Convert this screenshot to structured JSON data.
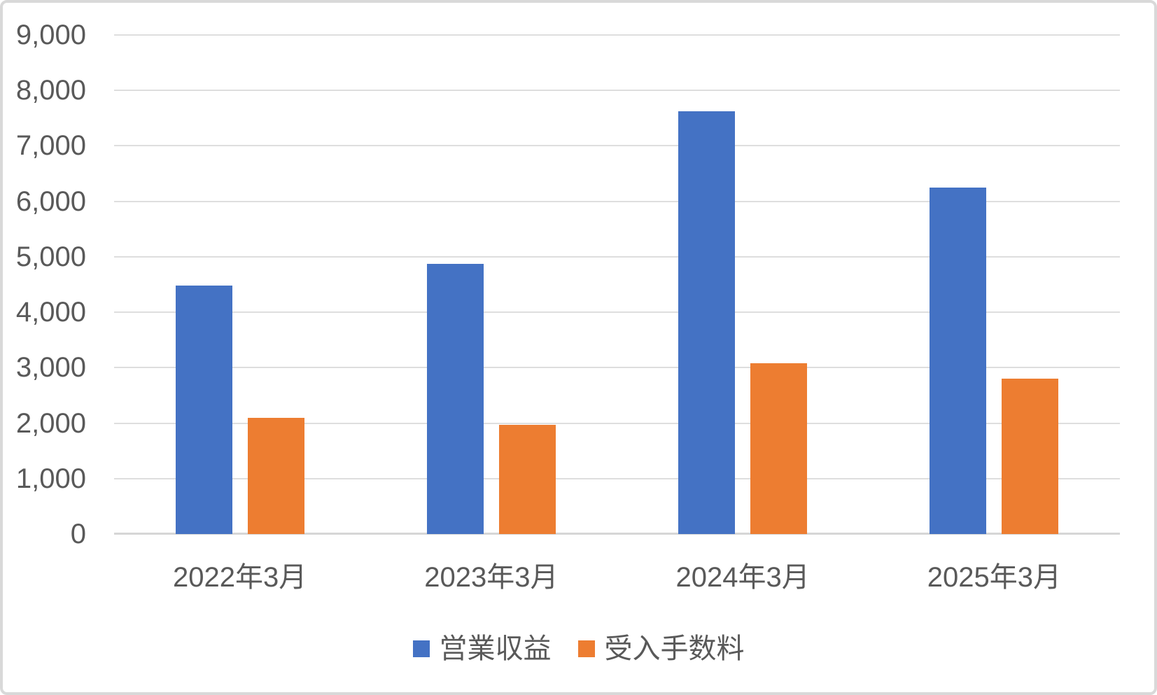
{
  "chart_data": {
    "type": "bar",
    "title": "",
    "xlabel": "",
    "ylabel": "",
    "categories": [
      "2022年3月",
      "2023年3月",
      "2024年3月",
      "2025年3月"
    ],
    "series": [
      {
        "name": "営業収益",
        "color": "#4472C4",
        "values": [
          4480,
          4870,
          7630,
          6250
        ]
      },
      {
        "name": "受入手数料",
        "color": "#ED7D31",
        "values": [
          2100,
          1970,
          3080,
          2800
        ]
      }
    ],
    "ylim": [
      0,
      9000
    ],
    "ytick_step": 1000,
    "ytick_labels": [
      "0",
      "1,000",
      "2,000",
      "3,000",
      "4,000",
      "5,000",
      "6,000",
      "7,000",
      "8,000",
      "9,000"
    ],
    "grid": true,
    "legend_position": "bottom"
  },
  "style": {
    "text_color": "#595959",
    "gridline_color": "#DEDEDE",
    "axis_line_color": "#D6D6D6",
    "background_color": "#FFFFFF",
    "border_color": "#D9D9D9"
  }
}
